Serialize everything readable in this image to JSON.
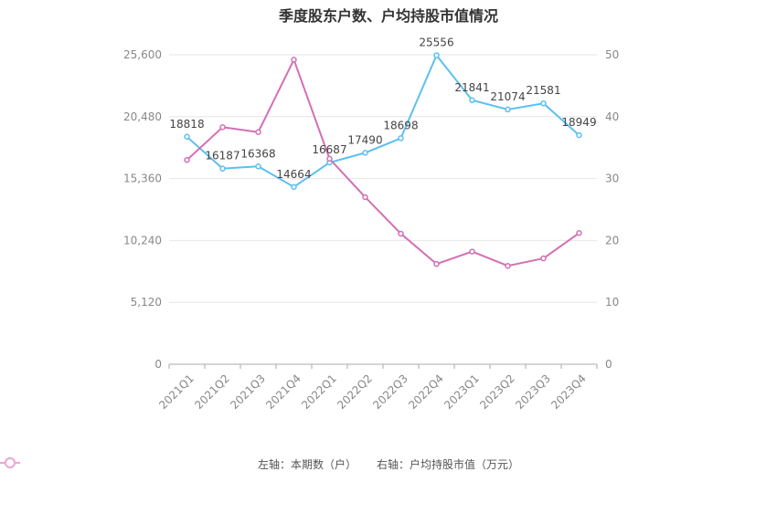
{
  "chart_data": {
    "type": "line",
    "title": "季度股东户数、户均持股市值情况",
    "categories": [
      "2021Q1",
      "2021Q2",
      "2021Q3",
      "2021Q4",
      "2022Q1",
      "2022Q2",
      "2022Q3",
      "2022Q4",
      "2023Q1",
      "2023Q2",
      "2023Q3",
      "2023Q4"
    ],
    "left_axis": {
      "min": 0,
      "max": 25600,
      "ticks": [
        "0",
        "5,120",
        "10,240",
        "15,360",
        "20,480",
        "25,600"
      ]
    },
    "right_axis": {
      "min": 0,
      "max": 50,
      "ticks": [
        "0",
        "10",
        "20",
        "30",
        "40",
        "50"
      ]
    },
    "series": [
      {
        "name": "左轴：本期数（户）",
        "axis": "left",
        "color": "#5bc0f0",
        "values": [
          18818,
          16187,
          16368,
          14664,
          16687,
          17490,
          18698,
          25556,
          21841,
          21074,
          21581,
          18949
        ],
        "labels": [
          "18818",
          "16187",
          "16368",
          "14664",
          "16687",
          "17490",
          "18698",
          "25556",
          "21841",
          "21074",
          "21581",
          "18949"
        ]
      },
      {
        "name": "右轴：户均持股市值（万元）",
        "axis": "right",
        "color": "#d36fb4",
        "values": [
          33.0,
          38.3,
          37.5,
          49.2,
          33.2,
          27.0,
          21.1,
          16.2,
          18.2,
          15.9,
          17.1,
          21.2
        ]
      }
    ],
    "grid": true,
    "legend_position": "bottom"
  }
}
